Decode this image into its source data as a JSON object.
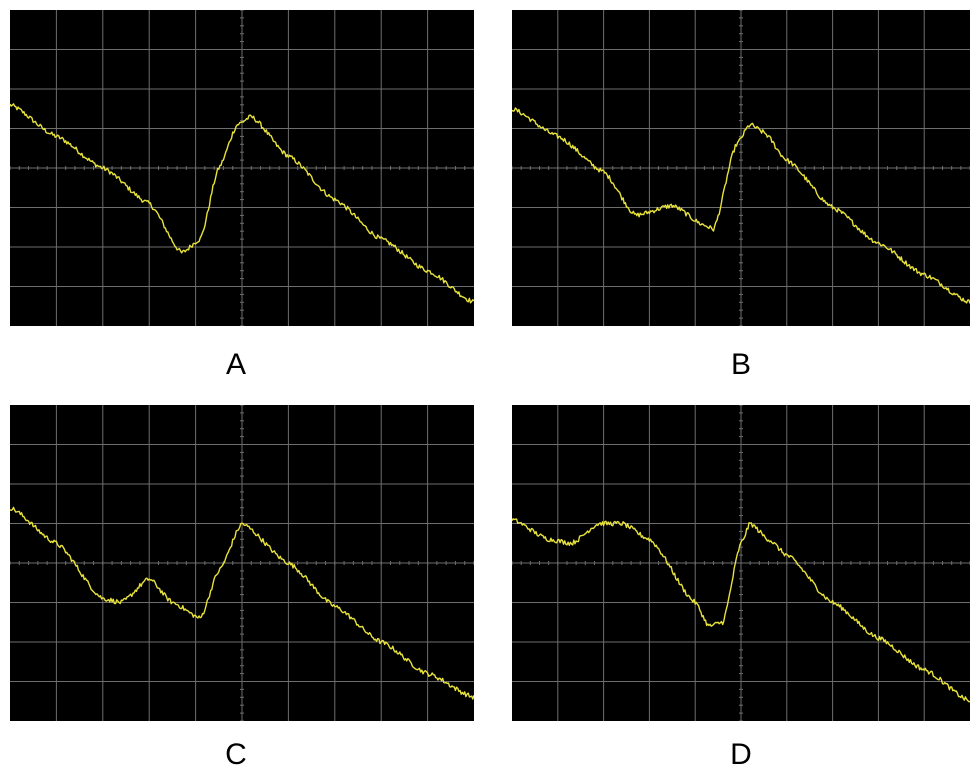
{
  "colors": {
    "screen": "#000000",
    "grid": "#6e6e6e",
    "trace": "#e8e23c",
    "caption": "#000000"
  },
  "chart_data": [
    {
      "type": "line",
      "caption": "A",
      "xlim": [
        0,
        10
      ],
      "ylim": [
        0,
        8
      ],
      "grid": true,
      "grid_divisions": [
        10,
        8
      ],
      "series": [
        {
          "x": [
            0,
            1,
            2,
            3,
            3.7,
            4.1,
            4.5,
            4.9,
            5.2,
            6,
            7,
            8,
            9,
            10
          ],
          "y": [
            5.6,
            4.8,
            4.0,
            3.1,
            1.85,
            2.2,
            4.0,
            5.1,
            5.3,
            4.3,
            3.2,
            2.2,
            1.4,
            0.6
          ]
        }
      ]
    },
    {
      "type": "line",
      "caption": "B",
      "xlim": [
        0,
        10
      ],
      "ylim": [
        0,
        8
      ],
      "grid": true,
      "grid_divisions": [
        10,
        8
      ],
      "series": [
        {
          "x": [
            0,
            1,
            2,
            2.7,
            3.5,
            4.2,
            4.4,
            4.9,
            5.2,
            5.5,
            6,
            7,
            8,
            9,
            10
          ],
          "y": [
            5.5,
            4.8,
            3.9,
            2.8,
            3.05,
            2.55,
            2.45,
            4.6,
            5.1,
            4.9,
            4.2,
            3.0,
            2.1,
            1.3,
            0.6
          ]
        }
      ]
    },
    {
      "type": "line",
      "caption": "C",
      "xlim": [
        0,
        10
      ],
      "ylim": [
        0,
        8
      ],
      "grid": true,
      "grid_divisions": [
        10,
        8
      ],
      "series": [
        {
          "x": [
            0,
            1,
            2,
            2.4,
            3,
            3.5,
            4.1,
            4.5,
            5,
            6,
            7,
            8,
            9,
            10
          ],
          "y": [
            5.4,
            4.5,
            3.1,
            3.0,
            3.6,
            3.0,
            2.6,
            3.8,
            5.0,
            4.0,
            2.9,
            2.0,
            1.2,
            0.6
          ]
        }
      ]
    },
    {
      "type": "line",
      "caption": "D",
      "xlim": [
        0,
        10
      ],
      "ylim": [
        0,
        8
      ],
      "grid": true,
      "grid_divisions": [
        10,
        8
      ],
      "series": [
        {
          "x": [
            0,
            0.8,
            1.3,
            1.9,
            2.4,
            3,
            4,
            4.3,
            4.6,
            5.0,
            5.2,
            5.6,
            6,
            7,
            8,
            9,
            10
          ],
          "y": [
            5.1,
            4.6,
            4.5,
            5.0,
            5.0,
            4.6,
            3.0,
            2.4,
            2.5,
            4.5,
            5.0,
            4.6,
            4.2,
            3.0,
            2.1,
            1.3,
            0.5
          ]
        }
      ]
    }
  ]
}
